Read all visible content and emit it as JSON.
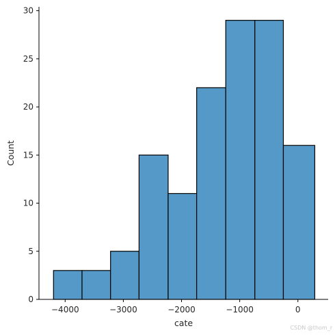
{
  "chart_data": {
    "type": "bar",
    "subtype": "histogram",
    "bins": [
      {
        "x0": -4200,
        "x1": -3710,
        "count": 3
      },
      {
        "x0": -3710,
        "x1": -3220,
        "count": 3
      },
      {
        "x0": -3220,
        "x1": -2730,
        "count": 5
      },
      {
        "x0": -2730,
        "x1": -2230,
        "count": 15
      },
      {
        "x0": -2230,
        "x1": -1740,
        "count": 11
      },
      {
        "x0": -1740,
        "x1": -1240,
        "count": 22
      },
      {
        "x0": -1240,
        "x1": -740,
        "count": 29
      },
      {
        "x0": -740,
        "x1": -250,
        "count": 29
      },
      {
        "x0": -250,
        "x1": 290,
        "count": 16
      }
    ],
    "xlabel": "cate",
    "ylabel": "Count",
    "xlim": [
      -4450,
      520
    ],
    "ylim": [
      0,
      30.4
    ],
    "xticks": [
      -4000,
      -3000,
      -2000,
      -1000,
      0
    ],
    "xtick_labels": [
      "−4000",
      "−3000",
      "−2000",
      "−1000",
      "0"
    ],
    "yticks": [
      0,
      5,
      10,
      15,
      20,
      25,
      30
    ],
    "ytick_labels": [
      "0",
      "5",
      "10",
      "15",
      "20",
      "25",
      "30"
    ],
    "grid": false,
    "bar_color": "#5499c7",
    "edge_color": "#000000"
  },
  "watermark": "CSDN @thom_r"
}
